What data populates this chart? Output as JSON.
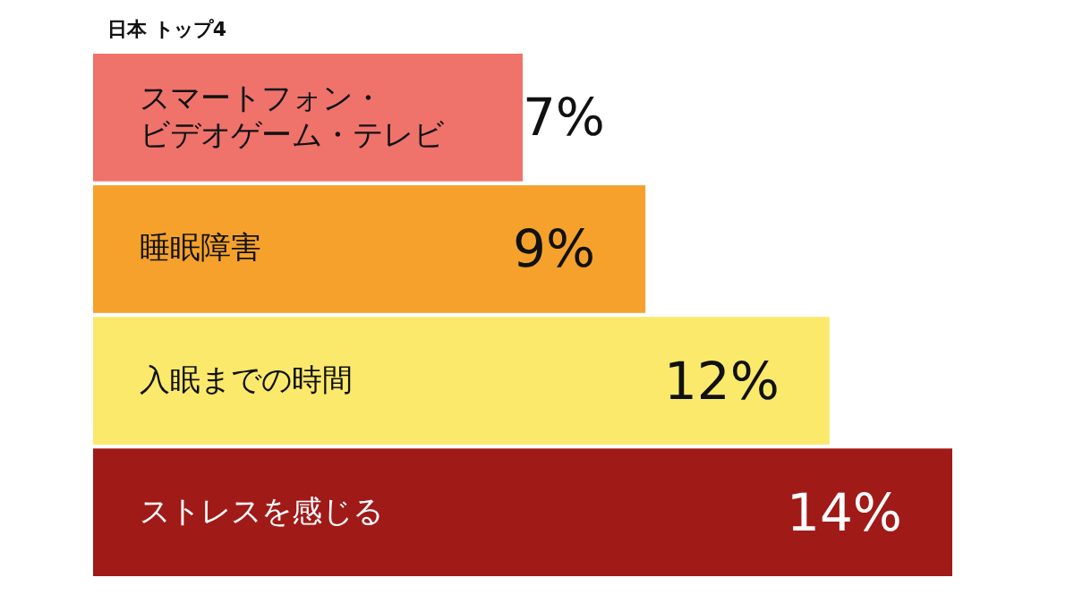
{
  "chart_data": {
    "type": "bar",
    "orientation": "horizontal",
    "title": "日本 トップ4",
    "categories": [
      "スマートフォン・ビデオゲーム・テレビ",
      "睡眠障害",
      "入眠までの時間",
      "ストレスを感じる"
    ],
    "values": [
      7,
      9,
      12,
      14
    ],
    "colors": [
      "#ef736b",
      "#f5a12b",
      "#fbe96c",
      "#a01a18"
    ],
    "value_labels": [
      "7%",
      "9%",
      "12%",
      "14%"
    ]
  }
}
